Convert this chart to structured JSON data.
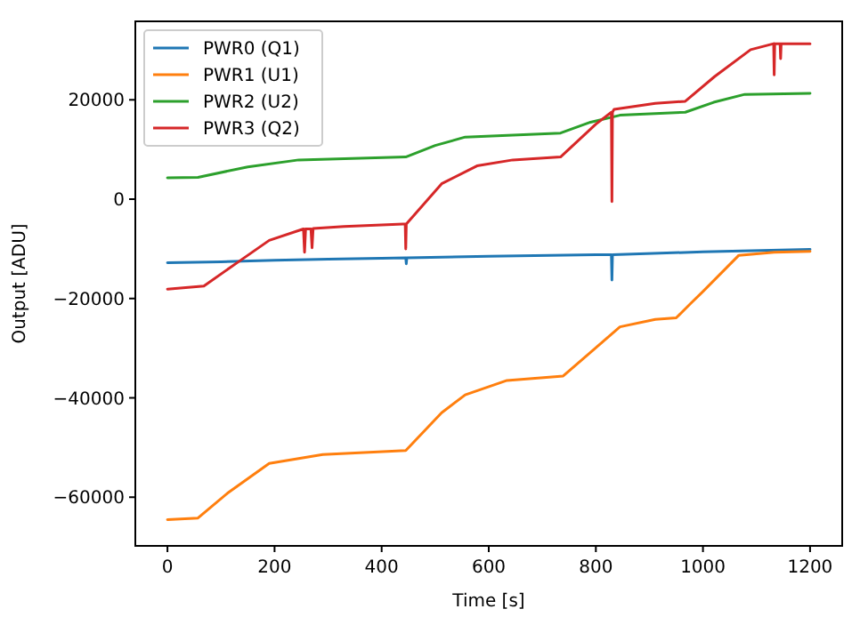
{
  "chart_data": {
    "type": "line",
    "xlabel": "Time [s]",
    "ylabel": "Output [ADU]",
    "xlim": [
      -60,
      1260
    ],
    "ylim": [
      -69800,
      35800
    ],
    "xticks": [
      0,
      200,
      400,
      600,
      800,
      1000,
      1200
    ],
    "yticks": [
      -60000,
      -40000,
      -20000,
      0,
      20000
    ],
    "legend": "top left",
    "grid": false,
    "series": [
      {
        "name": "PWR0 (Q1)",
        "color": "#1f77b4",
        "x": [
          0,
          100,
          200,
          300,
          400,
          445,
          446,
          447,
          600,
          800,
          829,
          830,
          831,
          1000,
          1200
        ],
        "values": [
          -12800,
          -12600,
          -12300,
          -12100,
          -11900,
          -11800,
          -13000,
          -11800,
          -11500,
          -11200,
          -11200,
          -16300,
          -11200,
          -10600,
          -10100
        ]
      },
      {
        "name": "PWR1 (U1)",
        "color": "#ff7f0e",
        "x": [
          0,
          57,
          112,
          190,
          290,
          445,
          512,
          556,
          634,
          739,
          800,
          845,
          911,
          950,
          978,
          1000,
          1067,
          1133,
          1200
        ],
        "values": [
          -64500,
          -64200,
          -59200,
          -53200,
          -51400,
          -50600,
          -43000,
          -39400,
          -36500,
          -35600,
          -29900,
          -25700,
          -24200,
          -23900,
          -20900,
          -18600,
          -11300,
          -10700,
          -10500
        ]
      },
      {
        "name": "PWR2 (U2)",
        "color": "#2ca02c",
        "x": [
          0,
          57,
          150,
          245,
          445,
          500,
          556,
          734,
          790,
          845,
          967,
          1020,
          1078,
          1200
        ],
        "values": [
          4300,
          4400,
          6500,
          7900,
          8500,
          10800,
          12500,
          13300,
          15500,
          16900,
          17500,
          19500,
          21100,
          21300
        ]
      },
      {
        "name": "PWR3 (Q2)",
        "color": "#d62728",
        "x": [
          0,
          68,
          134,
          190,
          254,
          256,
          258,
          268,
          270,
          272,
          330,
          440,
          444,
          445,
          446,
          512,
          578,
          645,
          734,
          800,
          829,
          830,
          831,
          834,
          911,
          967,
          1022,
          1089,
          1132,
          1133,
          1134,
          1144,
          1145,
          1146,
          1200
        ],
        "values": [
          -18100,
          -17500,
          -12500,
          -8300,
          -6000,
          -10700,
          -6000,
          -6000,
          -9800,
          -5900,
          -5500,
          -5000,
          -5000,
          -10000,
          -5000,
          3100,
          6700,
          7900,
          8500,
          15100,
          17500,
          -500,
          17500,
          18100,
          19300,
          19700,
          24700,
          30100,
          31300,
          25000,
          31300,
          31300,
          28300,
          31300,
          31300
        ]
      }
    ]
  }
}
